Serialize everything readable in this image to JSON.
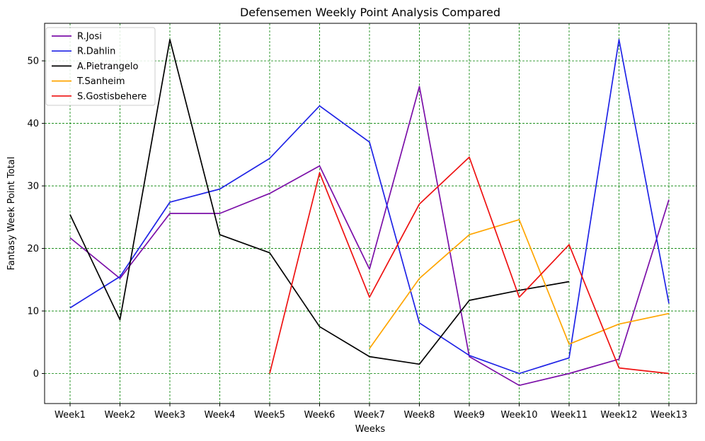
{
  "chart_data": {
    "type": "line",
    "title": "Defensemen Weekly Point Analysis Compared",
    "xlabel": "Weeks",
    "ylabel": "Fantasy Week Point Total",
    "categories": [
      "Week1",
      "Week2",
      "Week3",
      "Week4",
      "Week5",
      "Week6",
      "Week7",
      "Week8",
      "Week9",
      "Week10",
      "Week11",
      "Week12",
      "Week13"
    ],
    "ylim": [
      -4.8,
      56.0
    ],
    "yticks": [
      0,
      10,
      20,
      30,
      40,
      50
    ],
    "grid": true,
    "grid_color": "#008000",
    "legend_position": "upper-left",
    "series": [
      {
        "name": "R.Josi",
        "color": "#7B0FA8",
        "values": [
          21.7,
          15.2,
          25.6,
          25.6,
          28.8,
          33.2,
          16.7,
          45.9,
          2.7,
          -1.9,
          0.0,
          2.3,
          27.8
        ]
      },
      {
        "name": "R.Dahlin",
        "color": "#1F23E6",
        "values": [
          10.5,
          15.5,
          27.4,
          29.5,
          34.4,
          42.8,
          37.0,
          8.1,
          2.9,
          0.0,
          2.5,
          53.4,
          11.2
        ]
      },
      {
        "name": "A.Pietrangelo",
        "color": "#000000",
        "values": [
          25.4,
          8.6,
          53.4,
          22.2,
          19.3,
          7.5,
          2.7,
          1.5,
          11.7,
          13.3,
          14.7,
          null,
          null
        ]
      },
      {
        "name": "T.Sanheim",
        "color": "#FFA500",
        "values": [
          null,
          null,
          null,
          null,
          null,
          null,
          4.0,
          15.2,
          22.2,
          24.6,
          4.7,
          7.9,
          9.6
        ]
      },
      {
        "name": "S.Gostisbehere",
        "color": "#EE1111",
        "values": [
          null,
          null,
          null,
          null,
          0.0,
          32.1,
          12.2,
          27.1,
          34.6,
          12.2,
          20.6,
          0.9,
          0.0
        ]
      }
    ]
  }
}
